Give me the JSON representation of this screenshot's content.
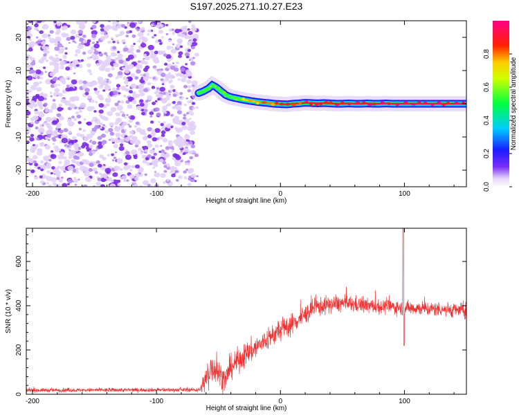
{
  "title": "S197.2025.271.10.27.E23",
  "chart_data": [
    {
      "type": "heatmap",
      "title": "S197.2025.271.10.27.E23",
      "xlabel": "Height of straight line (km)",
      "ylabel": "Frequency (Hz)",
      "xlim": [
        -205,
        150
      ],
      "ylim": [
        -25,
        25
      ],
      "x_ticks": [
        -200,
        -100,
        0,
        100
      ],
      "x_tick_labels": [
        "-200",
        "-100",
        "0",
        "100"
      ],
      "y_ticks": [
        -20,
        -10,
        0,
        10,
        20
      ],
      "y_tick_labels": [
        "-20",
        "-10",
        "0",
        "10",
        "20"
      ],
      "noise_region_x": [
        -205,
        -67
      ],
      "ridge": {
        "x": [
          -66,
          -62,
          -58,
          -55,
          -52,
          -48,
          -44,
          -40,
          -35,
          -30,
          -25,
          -20,
          -15,
          -10,
          -5,
          0,
          5,
          10,
          15,
          20,
          25,
          30,
          35,
          40,
          45,
          50,
          55,
          60,
          65,
          70,
          75,
          80,
          85,
          90,
          95,
          100,
          105,
          110,
          115,
          120,
          125,
          130,
          135,
          140,
          145,
          150
        ],
        "y": [
          3.2,
          3.8,
          4.6,
          5.6,
          5.0,
          3.8,
          2.6,
          2.0,
          1.6,
          1.2,
          0.9,
          0.6,
          0.4,
          0.2,
          0.0,
          -0.1,
          -0.2,
          0.0,
          0.1,
          0.3,
          0.2,
          0.1,
          0.2,
          0.1,
          0.0,
          0.0,
          0.1,
          0.0,
          0.0,
          0.1,
          0.0,
          0.0,
          0.1,
          0.0,
          0.0,
          0.0,
          0.0,
          0.0,
          0.0,
          0.0,
          0.0,
          0.0,
          0.0,
          0.0,
          0.0,
          0.0
        ],
        "amplitude": [
          0.5,
          0.55,
          0.6,
          0.65,
          0.65,
          0.6,
          0.6,
          0.65,
          0.7,
          0.7,
          0.75,
          0.75,
          0.8,
          0.8,
          0.8,
          0.85,
          0.85,
          0.85,
          0.85,
          0.9,
          0.9,
          0.9,
          0.9,
          0.9,
          0.9,
          0.9,
          0.92,
          0.92,
          0.92,
          0.92,
          0.92,
          0.95,
          0.95,
          0.95,
          0.95,
          0.95,
          0.95,
          0.95,
          0.95,
          0.95,
          0.95,
          0.95,
          0.95,
          0.95,
          0.95,
          0.95
        ]
      }
    },
    {
      "type": "line",
      "xlabel": "Height of straight line (km)",
      "ylabel": "SNR (10 * v/v)",
      "xlim": [
        -205,
        150
      ],
      "ylim": [
        0,
        750
      ],
      "x_ticks": [
        -200,
        -100,
        0,
        100
      ],
      "x_tick_labels": [
        "-200",
        "-100",
        "0",
        "100"
      ],
      "y_ticks": [
        0,
        200,
        400,
        600
      ],
      "y_tick_labels": [
        "0",
        "200",
        "400",
        "600"
      ],
      "color": "#ee3333",
      "envelope": {
        "x": [
          -205,
          -65,
          -60,
          -55,
          -50,
          -45,
          -40,
          -35,
          -30,
          -25,
          -20,
          -15,
          -10,
          -5,
          0,
          5,
          10,
          15,
          20,
          25,
          30,
          40,
          50,
          60,
          70,
          80,
          90,
          100,
          110,
          120,
          130,
          140,
          150
        ],
        "mean": [
          18,
          20,
          70,
          130,
          100,
          60,
          120,
          150,
          170,
          190,
          210,
          230,
          250,
          270,
          290,
          305,
          320,
          340,
          360,
          380,
          395,
          405,
          410,
          405,
          400,
          395,
          395,
          390,
          390,
          385,
          385,
          380,
          380
        ],
        "spread": [
          8,
          8,
          60,
          70,
          60,
          50,
          50,
          50,
          50,
          50,
          50,
          45,
          45,
          45,
          45,
          45,
          45,
          40,
          40,
          40,
          40,
          35,
          35,
          35,
          30,
          30,
          30,
          30,
          30,
          30,
          30,
          30,
          30
        ]
      },
      "spike": {
        "x": 99,
        "peak": 750,
        "trough": 220
      }
    }
  ],
  "colorbar": {
    "label": "Normalized spectral amplitude",
    "range": [
      0,
      1
    ],
    "ticks": [
      0.0,
      0.2,
      0.4,
      0.6,
      0.8
    ],
    "tick_labels": [
      "0.0",
      "0.2",
      "0.4",
      "0.6",
      "0.8"
    ]
  }
}
